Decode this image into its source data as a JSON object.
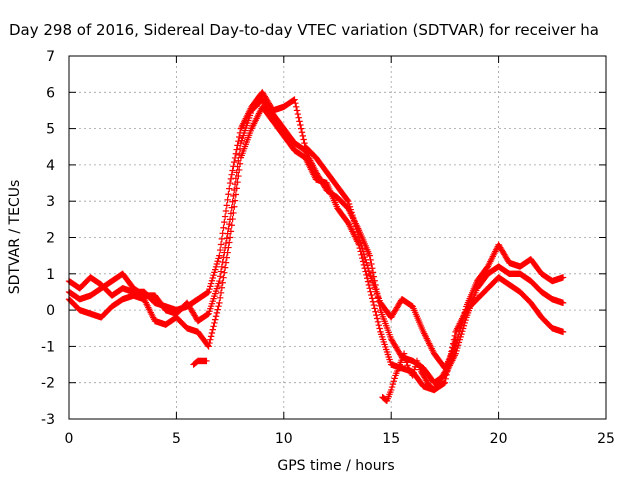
{
  "chart_data": {
    "type": "scatter",
    "title": "Day 298 of 2016, Sidereal Day-to-day VTEC variation (SDTVAR) for receiver ha",
    "xlabel": "GPS time / hours",
    "ylabel": "SDTVAR / TECUs",
    "xlim": [
      0,
      25
    ],
    "ylim": [
      -3,
      7
    ],
    "xticks": [
      "0",
      "5",
      "10",
      "15",
      "20",
      "25"
    ],
    "yticks": [
      "-3",
      "-2",
      "-1",
      "0",
      "1",
      "2",
      "3",
      "4",
      "5",
      "6",
      "7"
    ],
    "grid": true,
    "marker": "+",
    "color": "#ff0000",
    "series": [
      {
        "x": [
          0.0,
          0.5,
          1.0,
          1.5,
          2.0,
          2.5,
          3.0,
          3.5,
          4.0,
          4.5,
          5.0,
          5.5,
          6.0,
          6.5,
          7.0,
          7.5,
          8.0,
          8.5,
          9.0,
          9.5,
          10.0,
          10.5,
          11.0,
          11.5,
          12.0,
          12.5,
          13.0,
          13.5,
          14.0,
          14.5,
          15.0,
          15.5,
          16.0,
          16.5,
          17.0,
          17.5,
          18.0,
          18.5,
          19.0,
          19.5,
          20.0,
          20.5,
          21.0,
          21.5,
          22.0,
          22.5,
          23.0
        ],
        "y": [
          0.8,
          0.6,
          0.9,
          0.7,
          0.4,
          0.6,
          0.5,
          0.5,
          0.2,
          0.1,
          0.0,
          0.1,
          0.3,
          0.5,
          1.5,
          3.5,
          5.0,
          5.6,
          6.0,
          5.5,
          5.6,
          5.8,
          4.5,
          4.2,
          3.8,
          3.4,
          3.0,
          2.0,
          1.0,
          0.2,
          -0.2,
          0.3,
          0.1,
          -0.6,
          -1.2,
          -1.6,
          -1.0,
          0.1,
          0.8,
          1.2,
          1.8,
          1.3,
          1.2,
          1.4,
          1.0,
          0.8,
          0.9
        ]
      },
      {
        "x": [
          0.0,
          0.5,
          1.0,
          1.5,
          2.0,
          2.5,
          3.0,
          3.5,
          4.0,
          4.5,
          5.0,
          5.5,
          6.0,
          6.5,
          7.0,
          7.5,
          8.0,
          8.5,
          9.0,
          9.5,
          10.0,
          10.5,
          11.0,
          11.5,
          12.0,
          12.5,
          13.0,
          13.5,
          14.0,
          14.5,
          15.0,
          15.5,
          16.0,
          16.5,
          17.0,
          17.5,
          18.0,
          18.5,
          19.0,
          19.5,
          20.0,
          20.5,
          21.0,
          21.5,
          22.0,
          22.5,
          23.0
        ],
        "y": [
          0.5,
          0.3,
          0.4,
          0.6,
          0.8,
          1.0,
          0.6,
          0.4,
          0.4,
          0.0,
          -0.1,
          0.2,
          -0.3,
          -0.1,
          0.8,
          2.5,
          4.6,
          5.5,
          5.8,
          5.4,
          5.0,
          4.6,
          4.4,
          3.8,
          3.3,
          3.1,
          2.8,
          2.2,
          1.5,
          0.0,
          -0.8,
          -1.3,
          -1.4,
          -1.6,
          -2.0,
          -1.8,
          -1.2,
          -0.2,
          0.6,
          1.0,
          1.2,
          1.0,
          1.0,
          0.8,
          0.5,
          0.3,
          0.2
        ]
      },
      {
        "x": [
          0.0,
          0.5,
          1.0,
          1.5,
          2.0,
          2.5,
          3.0,
          3.5,
          4.0,
          4.5,
          5.0,
          5.5,
          6.0,
          6.5,
          7.0,
          7.5,
          8.0,
          8.5,
          9.0,
          9.5,
          10.0,
          10.5,
          11.0,
          11.5,
          12.0,
          12.5,
          13.0,
          13.5,
          14.0,
          14.5,
          15.0,
          15.5,
          16.0,
          16.5,
          17.0,
          17.5,
          18.0,
          18.5,
          19.0,
          19.5,
          20.0,
          20.5,
          21.0,
          21.5,
          22.0,
          22.5,
          23.0
        ],
        "y": [
          0.3,
          0.0,
          -0.1,
          -0.2,
          0.1,
          0.3,
          0.4,
          0.3,
          -0.3,
          -0.4,
          -0.2,
          -0.5,
          -0.6,
          -1.0,
          0.2,
          2.0,
          4.2,
          5.0,
          5.6,
          5.2,
          4.8,
          4.4,
          4.2,
          3.6,
          3.5,
          2.8,
          2.4,
          1.8,
          0.6,
          -0.6,
          -1.5,
          -1.6,
          -1.7,
          -2.1,
          -2.2,
          -2.0,
          -0.6,
          0.0,
          0.3,
          0.6,
          0.9,
          0.7,
          0.5,
          0.2,
          -0.2,
          -0.5,
          -0.6
        ]
      },
      {
        "x": [
          14.6,
          14.8,
          15.0,
          15.2,
          15.4,
          15.6,
          15.8,
          16.0,
          16.2,
          16.4,
          16.6,
          16.8,
          17.0,
          17.2,
          17.4,
          17.6,
          17.8,
          18.0
        ],
        "y": [
          -2.4,
          -2.5,
          -2.2,
          -1.8,
          -1.5,
          -1.2,
          -1.6,
          -1.8,
          -1.4,
          -1.7,
          -1.9,
          -2.1,
          -2.2,
          -2.0,
          -1.8,
          -1.6,
          -1.2,
          -0.8
        ]
      },
      {
        "x": [
          5.8,
          6.0,
          6.2,
          6.4
        ],
        "y": [
          -1.5,
          -1.4,
          -1.4,
          -1.4
        ]
      }
    ]
  }
}
